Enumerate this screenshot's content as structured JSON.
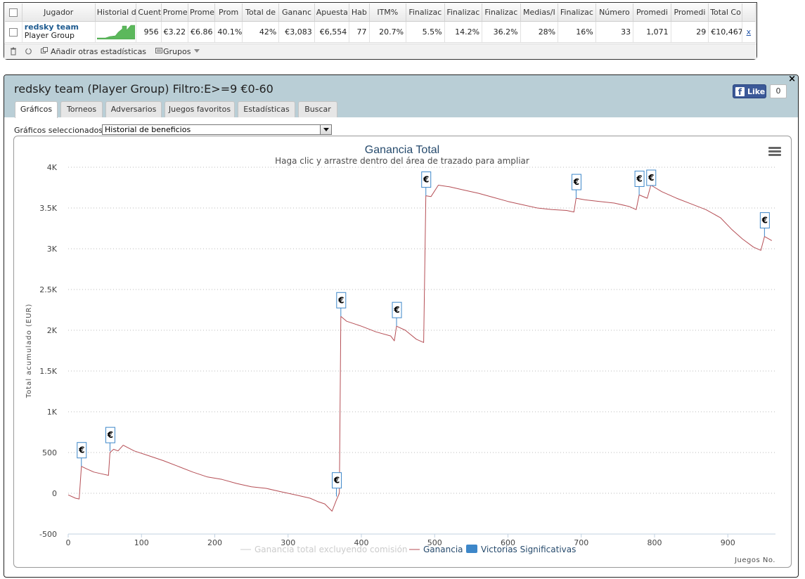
{
  "stats_table": {
    "headers": [
      "Jugador",
      "Historial d",
      "Cuent",
      "Prome",
      "Prome",
      "Prom",
      "Total de",
      "Gananc",
      "Apuesta",
      "Hab",
      "ITM%",
      "Finalizac",
      "Finalizac",
      "Finalizac",
      "Medias/I",
      "Finalizac",
      "Número",
      "Promedi",
      "Promedi",
      "Total Co"
    ],
    "row": {
      "player_name": "redsky team",
      "player_group": "Player Group",
      "cells": [
        "956",
        "€3.22",
        "€6.86",
        "40.1%",
        "42%",
        "€3,083",
        "€6,554",
        "77",
        "20.7%",
        "5.5%",
        "14.2%",
        "36.2%",
        "28%",
        "16%",
        "33",
        "1,071",
        "29",
        "€10,467"
      ],
      "remove_label": "x"
    }
  },
  "toolbar": {
    "add_stats_label": "Añadir otras estadísticas",
    "groups_label": "Grupos"
  },
  "panel": {
    "title": "redsky team (Player Group) Filtro:E>=9 €0-60",
    "close_label": "×",
    "fb_like_label": "Like",
    "fb_count": "0",
    "tabs": [
      "Gráficos",
      "Torneos",
      "Adversarios",
      "Juegos favoritos",
      "Estadísticas",
      "Buscar"
    ],
    "active_tab": 0,
    "graph_select_label": "Gráficos seleccionados:",
    "graph_select_value": "Historial de beneficios"
  },
  "colors": {
    "line": "#b54e55",
    "marker_border": "#3d87c9",
    "legend_bar": "#3d87c9",
    "title": "#274b6d",
    "header_band": "#b9ced6"
  },
  "chart_data": {
    "type": "line",
    "title": "Ganancia Total",
    "subtitle": "Haga clic y arrastre dentro del área de trazado para ampliar",
    "xlabel": "Juegos No.",
    "ylabel": "Total acumulado (EUR)",
    "xlim": [
      0,
      965
    ],
    "ylim": [
      -500,
      4000
    ],
    "x_ticks": [
      0,
      100,
      200,
      300,
      400,
      500,
      600,
      700,
      800,
      900
    ],
    "y_ticks": [
      -500,
      0,
      500,
      1000,
      1500,
      2000,
      2500,
      3000,
      3500,
      4000
    ],
    "y_tick_labels": [
      "-500",
      "0",
      "500",
      "1K",
      "1.5K",
      "2K",
      "2.5K",
      "3K",
      "3.5K",
      "4K"
    ],
    "grid": "horizontal-dotted",
    "legend_position": "bottom-center",
    "legend": [
      "Ganancia total excluyendo comisión",
      "Ganancia",
      "Victorias Significativas"
    ],
    "series": [
      {
        "name": "Ganancia",
        "points": [
          [
            0,
            -20
          ],
          [
            10,
            -60
          ],
          [
            15,
            -70
          ],
          [
            18,
            330
          ],
          [
            25,
            300
          ],
          [
            35,
            260
          ],
          [
            45,
            240
          ],
          [
            55,
            220
          ],
          [
            57,
            500
          ],
          [
            62,
            540
          ],
          [
            68,
            520
          ],
          [
            75,
            590
          ],
          [
            90,
            520
          ],
          [
            110,
            460
          ],
          [
            130,
            400
          ],
          [
            150,
            330
          ],
          [
            170,
            260
          ],
          [
            190,
            200
          ],
          [
            210,
            170
          ],
          [
            230,
            120
          ],
          [
            250,
            80
          ],
          [
            270,
            60
          ],
          [
            290,
            20
          ],
          [
            310,
            -20
          ],
          [
            330,
            -60
          ],
          [
            340,
            -100
          ],
          [
            350,
            -130
          ],
          [
            360,
            -220
          ],
          [
            366,
            -80
          ],
          [
            370,
            0
          ],
          [
            372,
            2170
          ],
          [
            380,
            2110
          ],
          [
            400,
            2050
          ],
          [
            420,
            1980
          ],
          [
            440,
            1930
          ],
          [
            445,
            1870
          ],
          [
            448,
            2050
          ],
          [
            460,
            2000
          ],
          [
            475,
            1890
          ],
          [
            485,
            1850
          ],
          [
            488,
            3650
          ],
          [
            495,
            3640
          ],
          [
            505,
            3780
          ],
          [
            520,
            3760
          ],
          [
            540,
            3720
          ],
          [
            560,
            3680
          ],
          [
            580,
            3630
          ],
          [
            600,
            3580
          ],
          [
            620,
            3540
          ],
          [
            640,
            3500
          ],
          [
            660,
            3480
          ],
          [
            680,
            3470
          ],
          [
            690,
            3450
          ],
          [
            693,
            3620
          ],
          [
            705,
            3600
          ],
          [
            725,
            3580
          ],
          [
            745,
            3560
          ],
          [
            765,
            3520
          ],
          [
            775,
            3480
          ],
          [
            779,
            3660
          ],
          [
            790,
            3620
          ],
          [
            795,
            3780
          ],
          [
            810,
            3700
          ],
          [
            830,
            3620
          ],
          [
            850,
            3550
          ],
          [
            870,
            3480
          ],
          [
            890,
            3380
          ],
          [
            905,
            3240
          ],
          [
            920,
            3120
          ],
          [
            935,
            3020
          ],
          [
            945,
            2980
          ],
          [
            950,
            3150
          ],
          [
            960,
            3100
          ]
        ]
      }
    ],
    "significant_wins": [
      18,
      57,
      366,
      372,
      448,
      488,
      693,
      779,
      795,
      950
    ]
  }
}
